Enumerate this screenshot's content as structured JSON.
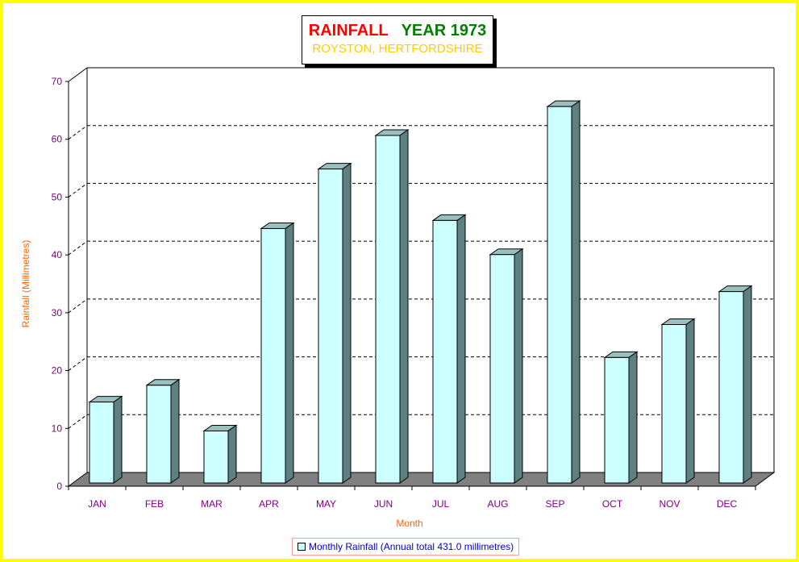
{
  "chart_data": {
    "type": "bar",
    "title": "RAINFALL",
    "title_year": "YEAR 1973",
    "subtitle": "ROYSTON, HERTFORDSHIRE",
    "xlabel": "Month",
    "ylabel": "Rainfall  (Millimetres)",
    "categories": [
      "JAN",
      "FEB",
      "MAR",
      "APR",
      "MAY",
      "JUN",
      "JUL",
      "AUG",
      "SEP",
      "OCT",
      "NOV",
      "DEC"
    ],
    "series": [
      {
        "name": "Monthly Rainfall (Annual total 431.0 millimetres)",
        "values": [
          14.0,
          16.9,
          9.0,
          44.0,
          54.3,
          60.1,
          45.4,
          39.5,
          65.1,
          21.7,
          27.4,
          33.1
        ]
      }
    ],
    "ylim": [
      0,
      70
    ],
    "yticks": [
      "0",
      "10",
      "20",
      "30",
      "40",
      "50",
      "60",
      "70"
    ],
    "grid": true,
    "legend_position": "bottom-center",
    "colors": {
      "bar_front": "#ccffff",
      "bar_top": "#99bfbf",
      "bar_side": "#5f8080",
      "floor": "#808080",
      "title": "#ff0000",
      "year": "#008000",
      "subtitle": "#ffcc00",
      "axis_label": "#ff6600",
      "tick": "#800080"
    }
  }
}
